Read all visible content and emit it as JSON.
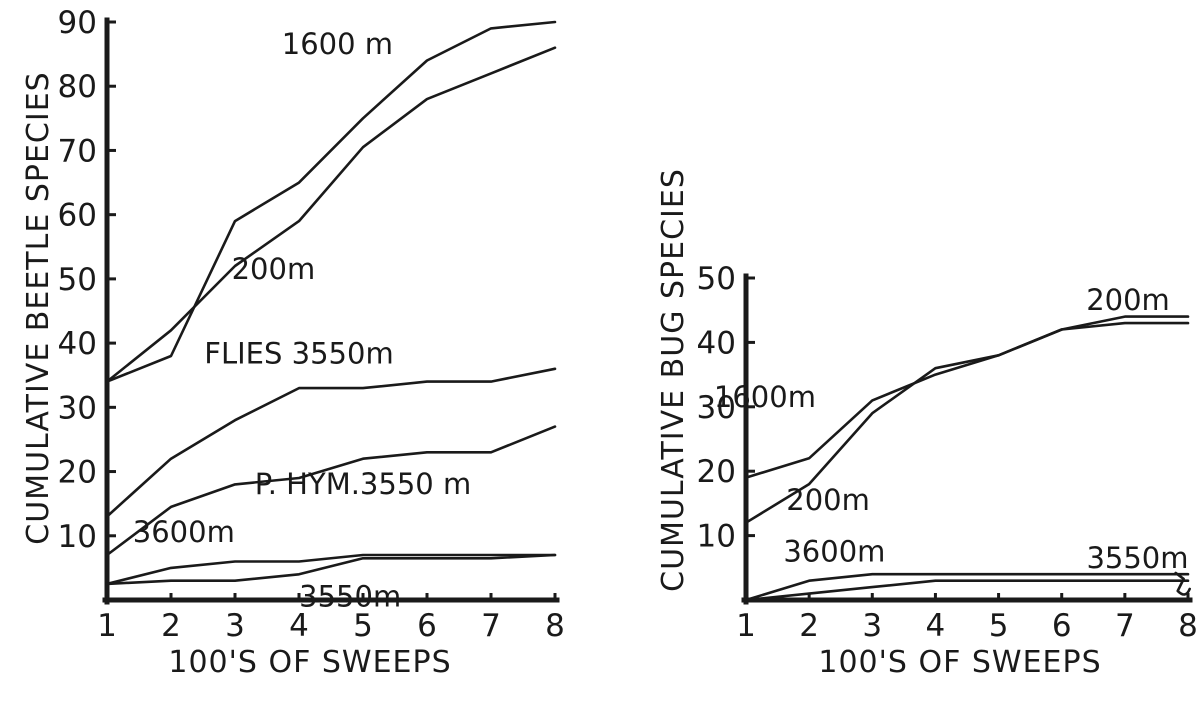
{
  "chart_data": [
    {
      "type": "line",
      "xlabel": "100'S OF SWEEPS",
      "ylabel": "CUMULATIVE BEETLE SPECIES",
      "x": [
        1,
        2,
        3,
        4,
        5,
        6,
        7,
        8
      ],
      "xlim": [
        1,
        8
      ],
      "ylim": [
        0,
        90
      ],
      "xticks": [
        "1",
        "2",
        "3",
        "4",
        "5",
        "6",
        "7",
        "8"
      ],
      "yticks": [
        "10",
        "20",
        "30",
        "40",
        "50",
        "60",
        "70",
        "80",
        "90"
      ],
      "grid": false,
      "series": [
        {
          "name": "1600 m",
          "values": [
            34,
            42,
            52,
            59,
            70.5,
            78,
            82,
            86
          ]
        },
        {
          "name": "200m",
          "values": [
            34,
            38,
            59,
            65,
            75,
            84,
            89,
            90
          ]
        },
        {
          "name": "FLIES 3550m",
          "values": [
            13,
            22,
            28,
            33,
            33,
            34,
            34,
            36
          ]
        },
        {
          "name": "P. HYM.3550 m",
          "values": [
            7,
            14.5,
            18,
            19,
            22,
            23,
            23,
            27
          ]
        },
        {
          "name": "3600m",
          "values": [
            2.5,
            5,
            6,
            6,
            7,
            7,
            7,
            7
          ]
        },
        {
          "name": "3550m",
          "values": [
            2.5,
            3,
            3,
            4,
            6.5,
            6.5,
            6.5,
            7
          ]
        }
      ],
      "labels": [
        {
          "text": "1600 m",
          "x": 4.6,
          "y": 85
        },
        {
          "text": "200m",
          "x": 3.6,
          "y": 50
        },
        {
          "text": "FLIES 3550m",
          "x": 4.0,
          "y": 36.8
        },
        {
          "text": "P. HYM.3550 m",
          "x": 5.0,
          "y": 16.5
        },
        {
          "text": "3600m",
          "x": 2.2,
          "y": 9
        },
        {
          "text": "3550m",
          "x": 4.8,
          "y": -1
        }
      ]
    },
    {
      "type": "line",
      "xlabel": "100'S OF SWEEPS",
      "ylabel": "CUMULATIVE BUG SPECIES",
      "x": [
        1,
        2,
        3,
        4,
        5,
        6,
        7,
        8
      ],
      "xlim": [
        1,
        8
      ],
      "ylim": [
        0,
        50
      ],
      "xticks": [
        "1",
        "2",
        "3",
        "4",
        "5",
        "6",
        "7",
        "8"
      ],
      "yticks": [
        "10",
        "20",
        "30",
        "40",
        "50"
      ],
      "grid": false,
      "series": [
        {
          "name": "1600m",
          "values": [
            19,
            22,
            31,
            35,
            38,
            42,
            43,
            43
          ]
        },
        {
          "name": "200m",
          "values": [
            12,
            18,
            29,
            36,
            38,
            42,
            44,
            44
          ]
        },
        {
          "name": "3600m",
          "values": [
            0,
            3,
            4,
            4,
            4,
            4,
            4,
            4
          ]
        },
        {
          "name": "3550m",
          "values": [
            0,
            1,
            2,
            3,
            3,
            3,
            3,
            3
          ]
        }
      ],
      "labels": [
        {
          "text": "1600m",
          "x": 1.3,
          "y": 30
        },
        {
          "text": "200m",
          "x": 7.05,
          "y": 45
        },
        {
          "text": "200m",
          "x": 2.3,
          "y": 14
        },
        {
          "text": "3600m",
          "x": 2.4,
          "y": 6
        },
        {
          "text": "3550m",
          "x": 7.2,
          "y": 5
        }
      ]
    }
  ]
}
